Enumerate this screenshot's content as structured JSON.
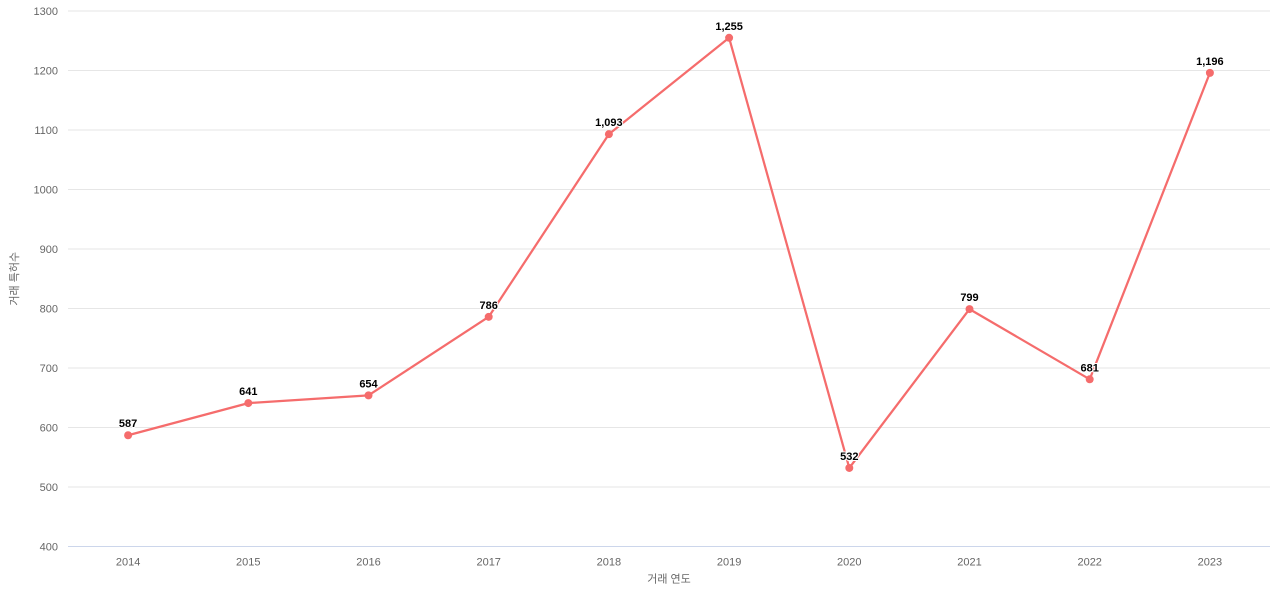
{
  "chart_data": {
    "type": "line",
    "title": "",
    "categories": [
      "2014",
      "2015",
      "2016",
      "2017",
      "2018",
      "2019",
      "2020",
      "2021",
      "2022",
      "2023"
    ],
    "series": [
      {
        "name": "거래 특허수",
        "values": [
          587,
          641,
          654,
          786,
          1093,
          1255,
          532,
          799,
          681,
          1196
        ],
        "labels": [
          "587",
          "641",
          "654",
          "786",
          "1,093",
          "1,255",
          "532",
          "799",
          "681",
          "1,196"
        ]
      }
    ],
    "xlabel": "거래 연도",
    "ylabel": "거래 특허수",
    "ylim": [
      400,
      1300
    ],
    "ytick_interval": 100,
    "yticks": [
      "400",
      "500",
      "600",
      "700",
      "800",
      "900",
      "1000",
      "1100",
      "1200",
      "1300"
    ],
    "grid": true,
    "legend_position": "none",
    "colors": {
      "series": "#f56c6c",
      "gridline": "#e6e6e6",
      "axis_line": "#ccd6eb",
      "tick_label": "#666666",
      "axis_title": "#666666",
      "data_label": "#000000",
      "background": "#ffffff"
    }
  }
}
